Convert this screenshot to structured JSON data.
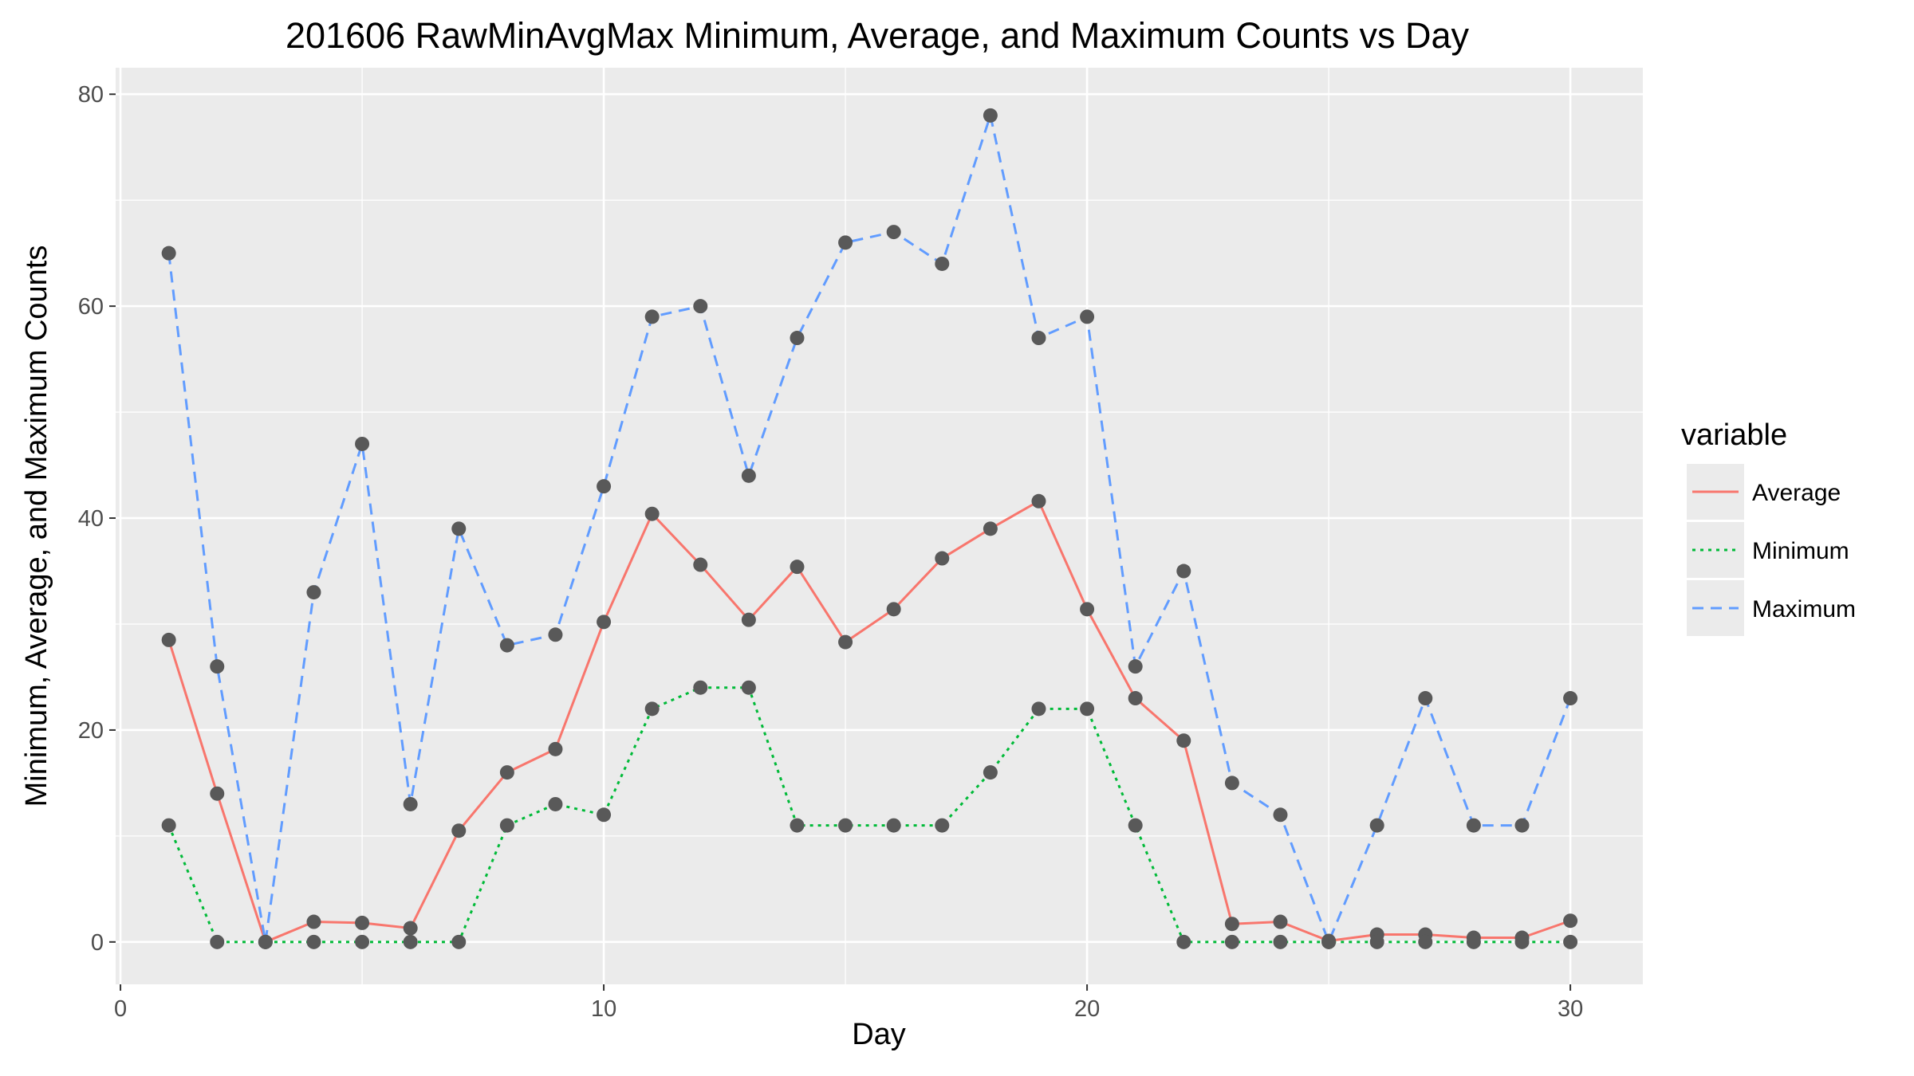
{
  "chart_data": {
    "type": "line",
    "title": "201606 RawMinAvgMax Minimum, Average, and Maximum Counts vs Day",
    "xlabel": "Day",
    "ylabel": "Minimum, Average, and Maximum Counts",
    "xlim": [
      -0.1,
      31.5
    ],
    "ylim": [
      -4,
      82.5
    ],
    "x_ticks": [
      0,
      10,
      20,
      30
    ],
    "y_ticks": [
      0,
      20,
      40,
      60,
      80
    ],
    "grid": true,
    "legend_title": "variable",
    "legend_position": "right",
    "x": [
      1,
      2,
      3,
      4,
      5,
      6,
      7,
      8,
      9,
      10,
      11,
      12,
      13,
      14,
      15,
      16,
      17,
      18,
      19,
      20,
      21,
      22,
      23,
      24,
      25,
      26,
      27,
      28,
      29,
      30
    ],
    "series": [
      {
        "name": "Average",
        "color": "#F8766D",
        "dash": "solid",
        "values": [
          28.5,
          14,
          0,
          1.9,
          1.8,
          1.3,
          10.5,
          16,
          18.2,
          30.2,
          40.4,
          35.6,
          30.4,
          35.4,
          28.3,
          31.4,
          36.2,
          39,
          41.6,
          31.4,
          23,
          19,
          1.7,
          1.9,
          0.1,
          0.7,
          0.7,
          0.4,
          0.4,
          2
        ]
      },
      {
        "name": "Minimum",
        "color": "#00BA38",
        "dash": "dotted",
        "values": [
          11,
          0,
          0,
          0,
          0,
          0,
          0,
          11,
          13,
          12,
          22,
          24,
          24,
          11,
          11,
          11,
          11,
          16,
          22,
          22,
          11,
          0,
          0,
          0,
          0,
          0,
          0,
          0,
          0,
          0
        ]
      },
      {
        "name": "Maximum",
        "color": "#619CFF",
        "dash": "dashed",
        "values": [
          65,
          26,
          0,
          33,
          47,
          13,
          39,
          28,
          29,
          43,
          59,
          60,
          44,
          57,
          66,
          67,
          64,
          78,
          57,
          59,
          26,
          35,
          15,
          12,
          0,
          11,
          23,
          11,
          11,
          23
        ]
      }
    ],
    "point_color": "#595959",
    "panel_background": "#EBEBEB",
    "grid_color": "#FFFFFF"
  }
}
